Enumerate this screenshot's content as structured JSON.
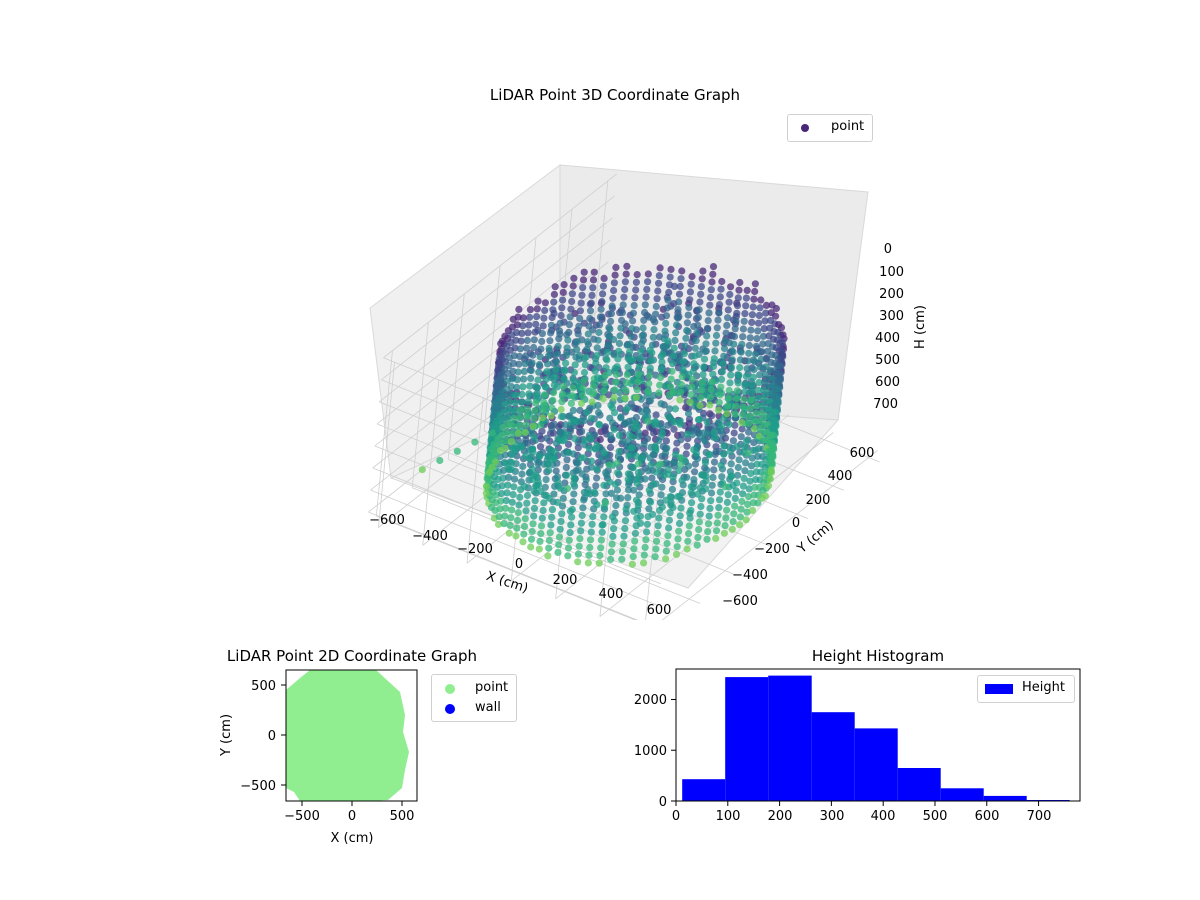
{
  "chart_data": [
    {
      "type": "scatter",
      "projection": "3d",
      "title": "LiDAR Point 3D Coordinate Graph",
      "xlabel": "X (cm)",
      "ylabel": "Y (cm)",
      "zlabel": "H (cm)",
      "xticks": [
        "−600",
        "−400",
        "−200",
        "0",
        "200",
        "400",
        "600"
      ],
      "yticks": [
        "−600",
        "−400",
        "−200",
        "0",
        "200",
        "400",
        "600"
      ],
      "zticks": [
        "0",
        "100",
        "200",
        "300",
        "400",
        "500",
        "600",
        "700"
      ],
      "xlim": [
        -650,
        650
      ],
      "ylim": [
        -650,
        650
      ],
      "zlim": [
        750,
        0
      ],
      "z_axis_inverted": true,
      "grid": true,
      "legend": {
        "position": "top-right",
        "entries": [
          "point"
        ]
      },
      "colormap": "viridis",
      "series": [
        {
          "name": "point",
          "description_shape": "cylindrical wall of scanned points",
          "radius_approx": 500,
          "h_range": [
            0,
            720
          ],
          "interior_points": true,
          "outlier_line": {
            "x": [
              -650,
              -250
            ],
            "y": [
              -350,
              500
            ],
            "h": [
              700,
              500
            ]
          }
        }
      ]
    },
    {
      "type": "scatter",
      "title": "LiDAR Point 2D Coordinate Graph",
      "xlabel": "X (cm)",
      "ylabel": "Y (cm)",
      "xticks": [
        "−500",
        "0",
        "500"
      ],
      "yticks": [
        "500",
        "0",
        "−500"
      ],
      "xlim": [
        -650,
        650
      ],
      "ylim": [
        -650,
        650
      ],
      "legend": {
        "position": "outside-right",
        "entries": [
          "point",
          "wall"
        ]
      },
      "series": [
        {
          "name": "point",
          "color": "#90ee90",
          "shape": "filled disc",
          "radius_approx": 560
        },
        {
          "name": "wall",
          "color": "#0000ff",
          "shape": "none visible"
        }
      ]
    },
    {
      "type": "bar",
      "subtype": "histogram",
      "title": "Height Histogram",
      "xticks": [
        "0",
        "100",
        "200",
        "300",
        "400",
        "500",
        "600",
        "700"
      ],
      "yticks": [
        "0",
        "1000",
        "2000"
      ],
      "xlim": [
        0,
        780
      ],
      "ylim": [
        0,
        2600
      ],
      "color": "#0000ff",
      "legend": {
        "position": "top-right",
        "entries": [
          "Height"
        ]
      },
      "series": [
        {
          "name": "Height",
          "bin_edges": [
            12,
            95,
            178,
            262,
            345,
            428,
            511,
            594,
            677,
            760
          ],
          "values": [
            430,
            2440,
            2470,
            1750,
            1430,
            650,
            250,
            100,
            20
          ]
        }
      ]
    }
  ]
}
